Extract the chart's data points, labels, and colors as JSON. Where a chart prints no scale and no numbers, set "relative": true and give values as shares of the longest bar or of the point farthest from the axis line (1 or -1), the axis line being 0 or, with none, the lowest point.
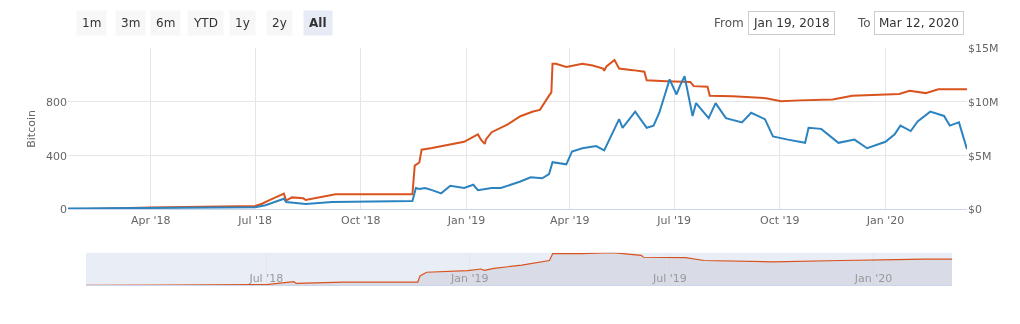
{
  "chart_data": [
    {
      "type": "line",
      "ylabel": "Bitcoin",
      "grid": true,
      "annotations": [
        "1m",
        "3m",
        "6m",
        "YTD",
        "1y",
        "2y",
        "All",
        "From",
        "Jan 19, 2018",
        "To",
        "Mar 12, 2020"
      ],
      "xlim": [
        "2018-01-19",
        "2020-03-12"
      ],
      "xticks": [
        {
          "value": "2018-04-01",
          "label": "Apr '18"
        },
        {
          "value": "2018-07-01",
          "label": "Jul '18"
        },
        {
          "value": "2018-10-01",
          "label": "Oct '18"
        },
        {
          "value": "2019-01-01",
          "label": "Jan '19"
        },
        {
          "value": "2019-04-01",
          "label": "Apr '19"
        },
        {
          "value": "2019-07-01",
          "label": "Jul '19"
        },
        {
          "value": "2019-10-01",
          "label": "Oct '19"
        },
        {
          "value": "2020-01-01",
          "label": "Jan '20"
        }
      ],
      "ylim": [
        0,
        1200
      ],
      "yticks": [
        0,
        400,
        800
      ],
      "y2lim": [
        0,
        15
      ],
      "y2ticks": [
        {
          "value": 0,
          "label": "$0"
        },
        {
          "value": 5,
          "label": "$5M"
        },
        {
          "value": 10,
          "label": "$10M"
        },
        {
          "value": 15,
          "label": "$15M"
        }
      ],
      "series": [
        {
          "color": "#d9531e",
          "x": [
            "2018-01-19",
            "2018-04-01",
            "2018-07-01",
            "2018-07-07",
            "2018-07-14",
            "2018-07-26",
            "2018-07-28",
            "2018-08-02",
            "2018-08-12",
            "2018-08-14",
            "2018-09-09",
            "2018-11-15",
            "2018-11-17",
            "2018-11-21",
            "2018-11-23",
            "2018-12-02",
            "2018-12-30",
            "2019-01-11",
            "2019-01-14",
            "2019-01-17",
            "2019-01-18",
            "2019-01-23",
            "2019-02-06",
            "2019-02-17",
            "2019-02-28",
            "2019-03-06",
            "2019-03-14",
            "2019-03-16",
            "2019-03-17",
            "2019-03-20",
            "2019-03-29",
            "2019-04-12",
            "2019-04-21",
            "2019-04-30",
            "2019-05-01",
            "2019-05-03",
            "2019-05-10",
            "2019-05-14",
            "2019-05-26",
            "2019-06-05",
            "2019-06-07",
            "2019-06-24",
            "2019-07-15",
            "2019-07-18",
            "2019-07-30",
            "2019-08-01",
            "2019-08-21",
            "2019-09-19",
            "2019-10-02",
            "2019-10-18",
            "2019-11-16",
            "2019-12-03",
            "2020-01-13",
            "2020-01-22",
            "2020-02-05",
            "2020-02-16",
            "2020-03-12"
          ],
          "values": [
            0,
            14,
            26,
            43,
            71,
            118,
            66,
            90,
            83,
            71,
            114,
            114,
            327,
            350,
            445,
            457,
            504,
            559,
            516,
            488,
            521,
            575,
            634,
            694,
            729,
            741,
            847,
            871,
            1084,
            1084,
            1060,
            1084,
            1072,
            1049,
            1032,
            1065,
            1112,
            1049,
            1037,
            1025,
            961,
            954,
            949,
            918,
            914,
            847,
            843,
            828,
            805,
            812,
            819,
            847,
            859,
            883,
            866,
            895,
            895
          ]
        },
        {
          "color": "#2b83c0",
          "axis": "y2",
          "x": [
            "2018-01-19",
            "2018-07-01",
            "2018-07-10",
            "2018-07-26",
            "2018-07-28",
            "2018-08-14",
            "2018-09-06",
            "2018-11-15",
            "2018-11-18",
            "2018-11-21",
            "2018-11-26",
            "2018-12-02",
            "2018-12-10",
            "2018-12-18",
            "2018-12-30",
            "2019-01-07",
            "2019-01-11",
            "2019-01-23",
            "2019-01-31",
            "2019-02-17",
            "2019-02-26",
            "2019-03-08",
            "2019-03-14",
            "2019-03-17",
            "2019-03-29",
            "2019-04-03",
            "2019-04-12",
            "2019-04-24",
            "2019-05-01",
            "2019-05-14",
            "2019-05-17",
            "2019-05-28",
            "2019-06-07",
            "2019-06-13",
            "2019-06-18",
            "2019-06-27",
            "2019-07-03",
            "2019-07-06",
            "2019-07-10",
            "2019-07-17",
            "2019-07-20",
            "2019-07-31",
            "2019-08-06",
            "2019-08-15",
            "2019-08-29",
            "2019-09-06",
            "2019-09-18",
            "2019-09-25",
            "2019-10-08",
            "2019-10-23",
            "2019-10-26",
            "2019-11-06",
            "2019-11-21",
            "2019-12-05",
            "2019-12-16",
            "2020-01-01",
            "2020-01-09",
            "2020-01-14",
            "2020-01-23",
            "2020-01-29",
            "2020-02-09",
            "2020-02-21",
            "2020-02-26",
            "2020-03-05",
            "2020-03-12"
          ],
          "values": [
            0.1,
            0.2,
            0.4,
            1.0,
            0.7,
            0.5,
            0.7,
            0.8,
            2.0,
            1.9,
            2.0,
            1.8,
            1.5,
            2.2,
            2.0,
            2.3,
            1.8,
            2.0,
            2.0,
            2.6,
            3.0,
            2.9,
            3.3,
            4.4,
            4.2,
            5.4,
            5.7,
            5.9,
            5.5,
            8.4,
            7.6,
            9.1,
            7.6,
            7.8,
            9.0,
            12.1,
            10.7,
            11.5,
            12.4,
            8.7,
            9.9,
            8.5,
            9.9,
            8.5,
            8.1,
            9.0,
            8.4,
            6.8,
            6.5,
            6.2,
            7.6,
            7.5,
            6.2,
            6.5,
            5.7,
            6.3,
            7.0,
            7.8,
            7.3,
            8.2,
            9.1,
            8.7,
            7.8,
            8.1,
            5.6
          ]
        }
      ]
    },
    {
      "type": "area",
      "tick_labels": "x",
      "grid": "x",
      "xlim": [
        "2018-01-19",
        "2020-03-12"
      ],
      "xticks": [
        {
          "value": "2018-07-01",
          "label": "Jul '18"
        },
        {
          "value": "2019-01-01",
          "label": "Jan '19"
        },
        {
          "value": "2019-07-01",
          "label": "Jul '19"
        },
        {
          "value": "2020-01-01",
          "label": "Jan '20"
        }
      ],
      "relative": true,
      "series": [
        {
          "color": "#d9531e",
          "x": [
            "2018-01-19",
            "2018-04-01",
            "2018-07-01",
            "2018-07-26",
            "2018-07-28",
            "2018-09-09",
            "2018-11-15",
            "2018-11-17",
            "2018-11-23",
            "2018-12-30",
            "2019-01-11",
            "2019-01-14",
            "2019-01-23",
            "2019-02-17",
            "2019-03-14",
            "2019-03-17",
            "2019-04-12",
            "2019-05-10",
            "2019-06-05",
            "2019-06-07",
            "2019-07-15",
            "2019-08-01",
            "2019-10-02",
            "2019-12-03",
            "2020-01-22",
            "2020-02-16",
            "2020-03-12"
          ],
          "values": [
            0,
            0.01,
            0.02,
            0.11,
            0.06,
            0.1,
            0.1,
            0.29,
            0.4,
            0.45,
            0.5,
            0.46,
            0.52,
            0.62,
            0.76,
            0.97,
            0.97,
            1,
            0.92,
            0.86,
            0.85,
            0.76,
            0.72,
            0.76,
            0.79,
            0.8,
            0.8
          ]
        }
      ]
    }
  ]
}
